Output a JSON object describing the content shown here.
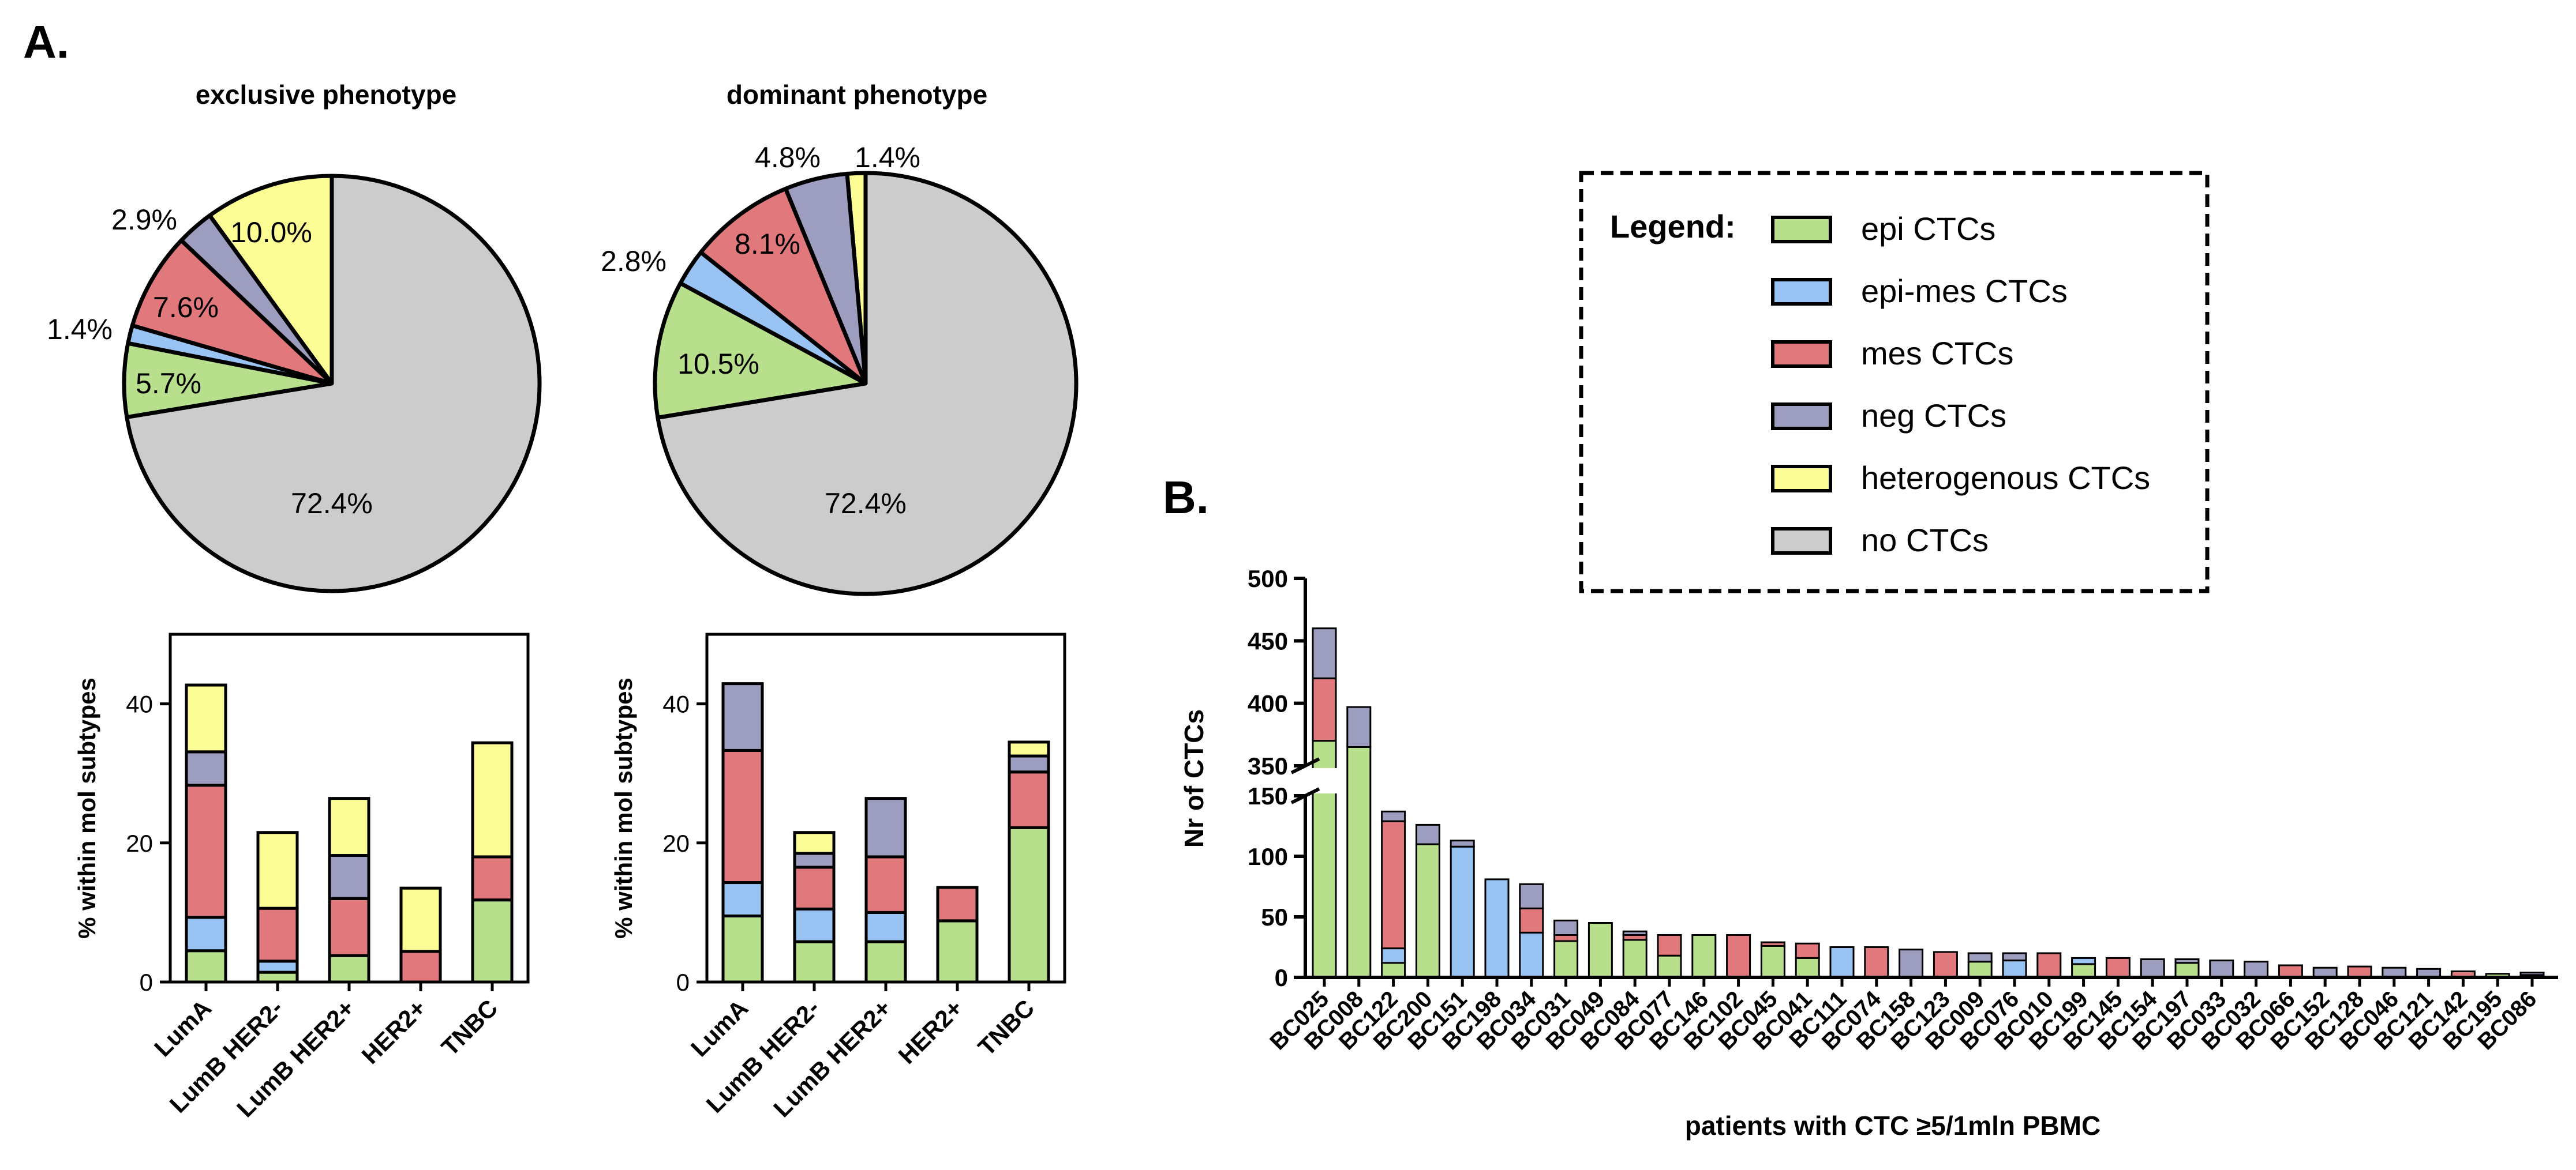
{
  "panel_labels": {
    "a": "A.",
    "b": "B."
  },
  "colors": {
    "epi": "#b8df8c",
    "epimes": "#98c3f3",
    "mes": "#e0787c",
    "neg": "#9d9dc0",
    "het": "#fdfd96",
    "none": "#cccccc",
    "stroke": "#000000"
  },
  "legend": {
    "title": "Legend:",
    "items": [
      {
        "key": "epi",
        "label": "epi CTCs"
      },
      {
        "key": "epimes",
        "label": "epi-mes CTCs"
      },
      {
        "key": "mes",
        "label": "mes CTCs"
      },
      {
        "key": "neg",
        "label": "neg CTCs"
      },
      {
        "key": "het",
        "label": "heterogenous CTCs"
      },
      {
        "key": "none",
        "label": "no CTCs"
      }
    ]
  },
  "chart_data": [
    {
      "id": "pie_exclusive",
      "type": "pie",
      "title": "exclusive phenotype",
      "slices": [
        {
          "key": "het",
          "value": 10.0,
          "label": "10.0%"
        },
        {
          "key": "neg",
          "value": 2.9,
          "label": "2.9%"
        },
        {
          "key": "mes",
          "value": 7.6,
          "label": "7.6%"
        },
        {
          "key": "epimes",
          "value": 1.4,
          "label": "1.4%"
        },
        {
          "key": "epi",
          "value": 5.7,
          "label": "5.7%"
        },
        {
          "key": "none",
          "value": 72.4,
          "label": "72.4%"
        }
      ]
    },
    {
      "id": "pie_dominant",
      "type": "pie",
      "title": "dominant phenotype",
      "slices": [
        {
          "key": "het",
          "value": 1.4,
          "label": "1.4%"
        },
        {
          "key": "neg",
          "value": 4.8,
          "label": "4.8%"
        },
        {
          "key": "mes",
          "value": 8.1,
          "label": "8.1%"
        },
        {
          "key": "epimes",
          "value": 2.8,
          "label": "2.8%"
        },
        {
          "key": "epi",
          "value": 10.5,
          "label": "10.5%"
        },
        {
          "key": "none",
          "value": 72.4,
          "label": "72.4%"
        }
      ]
    },
    {
      "id": "bar_exclusive",
      "type": "bar",
      "stacked": true,
      "ylabel": "% within mol subtypes",
      "ylim": [
        0,
        50
      ],
      "yticks": [
        0,
        20,
        40
      ],
      "categories": [
        "LumA",
        "LumB HER2-",
        "LumB HER2+",
        "HER2+",
        "TNBC"
      ],
      "series": [
        {
          "key": "epi",
          "values": [
            4.5,
            1.4,
            3.8,
            0,
            11.8
          ]
        },
        {
          "key": "epimes",
          "values": [
            4.8,
            1.6,
            0,
            0,
            0
          ]
        },
        {
          "key": "mes",
          "values": [
            19,
            7.6,
            8.2,
            4.4,
            6.2
          ]
        },
        {
          "key": "neg",
          "values": [
            4.8,
            0,
            6.2,
            0,
            0
          ]
        },
        {
          "key": "het",
          "values": [
            9.6,
            10.9,
            8.2,
            9.1,
            16.4
          ]
        }
      ]
    },
    {
      "id": "bar_dominant",
      "type": "bar",
      "stacked": true,
      "ylabel": "% within mol subtypes",
      "ylim": [
        0,
        50
      ],
      "yticks": [
        0,
        20,
        40
      ],
      "categories": [
        "LumA",
        "LumB HER2-",
        "LumB HER2+",
        "HER2+",
        "TNBC"
      ],
      "series": [
        {
          "key": "epi",
          "values": [
            9.5,
            5.8,
            5.8,
            8.8,
            22.2
          ]
        },
        {
          "key": "epimes",
          "values": [
            4.8,
            4.7,
            4.2,
            0,
            0
          ]
        },
        {
          "key": "mes",
          "values": [
            19,
            6,
            8,
            4.8,
            8
          ]
        },
        {
          "key": "neg",
          "values": [
            9.6,
            2.0,
            8.4,
            0,
            2.3
          ]
        },
        {
          "key": "het",
          "values": [
            0,
            3.0,
            0,
            0,
            2.0
          ]
        }
      ]
    },
    {
      "id": "bar_patients",
      "type": "bar",
      "stacked": true,
      "xlabel": "patients with CTC ≥5/1mln PBMC",
      "ylabel": "Nr of CTCs",
      "axis_break": {
        "from": 150,
        "to": 350
      },
      "ylim": [
        0,
        500
      ],
      "yticks": [
        0,
        50,
        100,
        150,
        350,
        400,
        450,
        500
      ],
      "categories": [
        "BC025",
        "BC008",
        "BC122",
        "BC200",
        "BC151",
        "BC198",
        "BC034",
        "BC031",
        "BC049",
        "BC084",
        "BC077",
        "BC146",
        "BC102",
        "BC045",
        "BC041",
        "BC111",
        "BC074",
        "BC158",
        "BC123",
        "BC009",
        "BC076",
        "BC010",
        "BC199",
        "BC145",
        "BC154",
        "BC197",
        "BC033",
        "BC032",
        "BC066",
        "BC152",
        "BC128",
        "BC046",
        "BC121",
        "BC142",
        "BC195",
        "BC086"
      ],
      "series": [
        {
          "key": "epi",
          "values": [
            370,
            365,
            12,
            110,
            0,
            0,
            0,
            30,
            45,
            31,
            18,
            35,
            0,
            26,
            16,
            0,
            0,
            0,
            0,
            13,
            0,
            0,
            11,
            0,
            0,
            12,
            0,
            0,
            0,
            0,
            0,
            0,
            0,
            0,
            3,
            2
          ]
        },
        {
          "key": "epimes",
          "values": [
            0,
            0,
            12,
            0,
            108,
            81,
            37,
            0,
            0,
            0,
            0,
            0,
            0,
            0,
            0,
            25,
            0,
            0,
            0,
            0,
            14,
            0,
            5,
            0,
            0,
            0,
            0,
            0,
            0,
            0,
            0,
            0,
            0,
            0,
            0,
            0
          ]
        },
        {
          "key": "mes",
          "values": [
            50,
            0,
            105,
            0,
            0,
            0,
            20,
            5,
            0,
            4,
            17,
            0,
            35,
            3,
            12,
            0,
            25,
            0,
            21,
            0,
            0,
            20,
            0,
            16,
            0,
            0,
            0,
            0,
            10,
            0,
            9,
            0,
            0,
            5,
            0,
            0
          ]
        },
        {
          "key": "neg",
          "values": [
            40,
            32,
            8,
            16,
            5,
            0,
            20,
            12,
            0,
            3,
            0,
            0,
            0,
            0,
            0,
            0,
            0,
            23,
            0,
            7,
            6,
            0,
            0,
            0,
            15,
            3,
            14,
            13,
            0,
            8,
            0,
            8,
            7,
            0,
            0,
            2
          ]
        },
        {
          "key": "het",
          "values": [
            0,
            0,
            0,
            0,
            0,
            0,
            0,
            0,
            0,
            0,
            0,
            0,
            0,
            0,
            0,
            0,
            0,
            0,
            0,
            0,
            0,
            0,
            0,
            0,
            0,
            0,
            0,
            0,
            0,
            0,
            0,
            0,
            0,
            0,
            0,
            0
          ]
        }
      ]
    }
  ]
}
